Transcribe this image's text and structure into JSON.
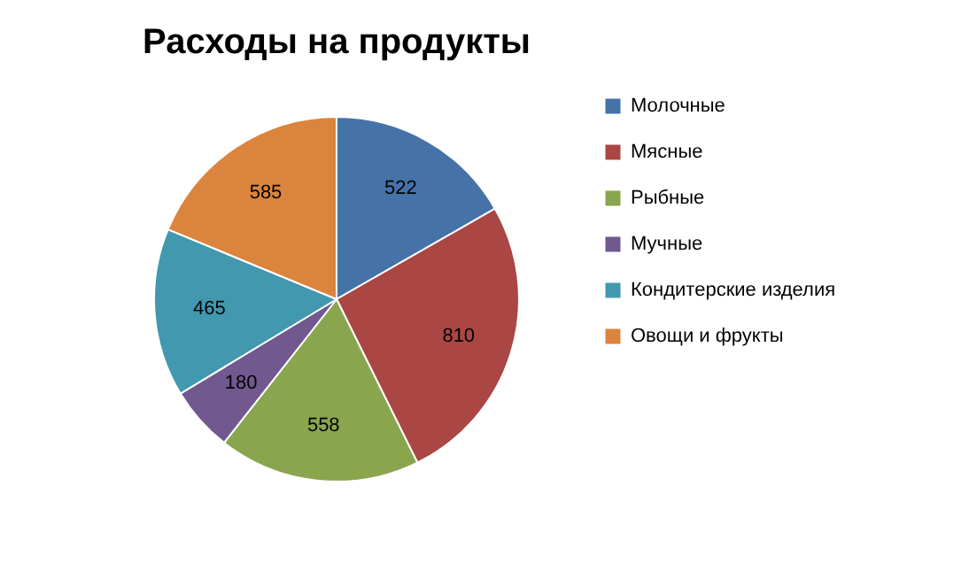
{
  "chart_data": {
    "type": "pie",
    "title": "Расходы на продукты",
    "categories": [
      "Молочные",
      "Мясные",
      "Рыбные",
      "Мучные",
      "Кондитерские изделия",
      "Овощи и фрукты"
    ],
    "values": [
      522,
      810,
      558,
      180,
      465,
      585
    ],
    "colors": [
      "#4572a7",
      "#aa4643",
      "#89a54e",
      "#71588f",
      "#4198af",
      "#db843d"
    ],
    "data_labels": true,
    "legend": "right"
  }
}
